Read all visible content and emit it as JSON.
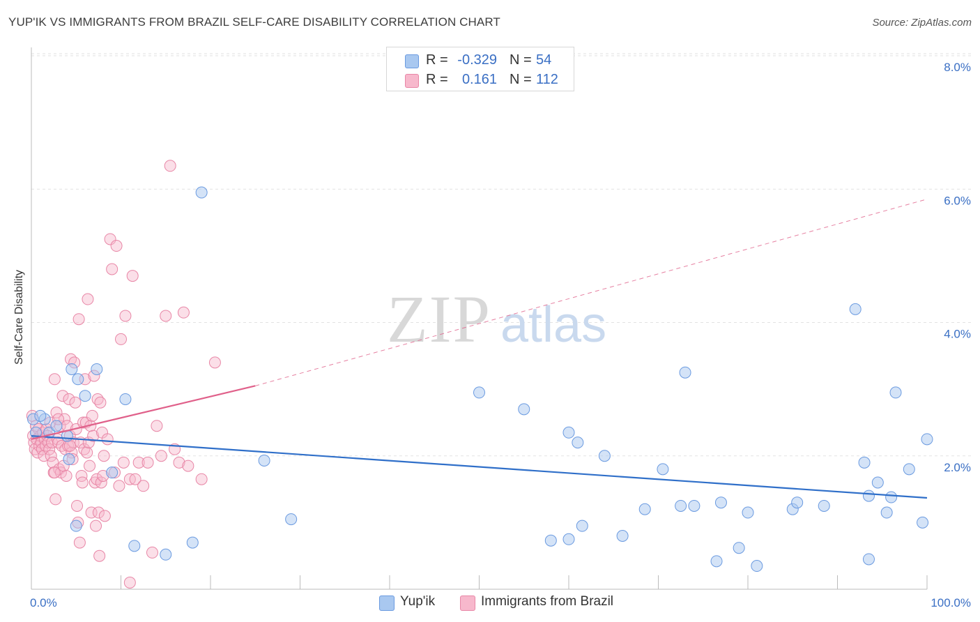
{
  "title": "YUP'IK VS IMMIGRANTS FROM BRAZIL SELF-CARE DISABILITY CORRELATION CHART",
  "source": "Source: ZipAtlas.com",
  "watermark": {
    "zip": "ZIP",
    "atlas": "atlas"
  },
  "legend_top": [
    {
      "r_label": "R =",
      "r_value": "-0.329",
      "n_label": "N =",
      "n_value": "54"
    },
    {
      "r_label": "R =",
      "r_value": "0.161",
      "n_label": "N =",
      "n_value": "112"
    }
  ],
  "legend_bottom": [
    "Yup'ik",
    "Immigrants from Brazil"
  ],
  "colors": {
    "yupik_fill": "#a9c8f0",
    "yupik_stroke": "#6a9ae0",
    "yupik_line": "#2f6fc9",
    "brazil_fill": "#f7b8cc",
    "brazil_stroke": "#e886a6",
    "brazil_line": "#e0608a",
    "tick_label": "#3a6fc4",
    "grid": "#e2e2e2"
  },
  "chart_data": {
    "type": "scatter",
    "title": "YUP'IK VS IMMIGRANTS FROM BRAZIL SELF-CARE DISABILITY CORRELATION CHART",
    "xlabel": "",
    "ylabel": "Self-Care Disability",
    "xlim": [
      0,
      100
    ],
    "ylim": [
      0,
      8.0
    ],
    "x_tick_labels": [
      "0.0%",
      "100.0%"
    ],
    "y_ticks": [
      2.0,
      4.0,
      6.0,
      8.0
    ],
    "y_tick_labels": [
      "2.0%",
      "4.0%",
      "6.0%",
      "8.0%"
    ],
    "grid": true,
    "legend_placement": "top-center",
    "series": [
      {
        "name": "Yup'ik",
        "r": -0.329,
        "n": 54,
        "trend": {
          "x": [
            0,
            100
          ],
          "y": [
            2.3,
            1.37
          ],
          "style": "solid"
        },
        "points": [
          [
            0.2,
            2.55
          ],
          [
            0.5,
            2.35
          ],
          [
            1.5,
            2.55
          ],
          [
            2.0,
            2.35
          ],
          [
            2.8,
            2.45
          ],
          [
            4.0,
            2.3
          ],
          [
            4.2,
            1.95
          ],
          [
            4.5,
            3.3
          ],
          [
            5.0,
            0.95
          ],
          [
            5.2,
            3.15
          ],
          [
            6.0,
            2.9
          ],
          [
            7.3,
            3.3
          ],
          [
            9.0,
            1.75
          ],
          [
            10.5,
            2.85
          ],
          [
            11.5,
            0.65
          ],
          [
            15.0,
            0.52
          ],
          [
            18.0,
            0.7
          ],
          [
            19.0,
            5.95
          ],
          [
            26.0,
            1.93
          ],
          [
            29.0,
            1.05
          ],
          [
            50.0,
            2.95
          ],
          [
            55.0,
            2.7
          ],
          [
            58.0,
            0.73
          ],
          [
            60.0,
            0.75
          ],
          [
            60.0,
            2.35
          ],
          [
            61.0,
            2.2
          ],
          [
            61.5,
            0.95
          ],
          [
            64.0,
            2.0
          ],
          [
            66.0,
            0.8
          ],
          [
            68.5,
            1.2
          ],
          [
            70.5,
            1.8
          ],
          [
            72.5,
            1.25
          ],
          [
            73.0,
            3.25
          ],
          [
            74.0,
            1.25
          ],
          [
            76.5,
            0.42
          ],
          [
            77.0,
            1.3
          ],
          [
            79.0,
            0.62
          ],
          [
            80.0,
            1.15
          ],
          [
            81.0,
            0.35
          ],
          [
            85.0,
            1.2
          ],
          [
            85.5,
            1.3
          ],
          [
            88.5,
            1.25
          ],
          [
            92.0,
            4.2
          ],
          [
            93.0,
            1.9
          ],
          [
            93.5,
            1.4
          ],
          [
            93.5,
            0.45
          ],
          [
            94.5,
            1.6
          ],
          [
            95.5,
            1.15
          ],
          [
            96.0,
            1.38
          ],
          [
            96.5,
            2.95
          ],
          [
            98.0,
            1.8
          ],
          [
            99.5,
            1.0
          ],
          [
            100.0,
            2.25
          ],
          [
            1.0,
            2.6
          ]
        ]
      },
      {
        "name": "Immigrants from Brazil",
        "r": 0.161,
        "n": 112,
        "trend": {
          "x": [
            0,
            25,
            100
          ],
          "y": [
            2.25,
            3.05,
            5.85
          ],
          "style": "solid to 25, dashed after"
        },
        "points": [
          [
            0.1,
            2.6
          ],
          [
            0.2,
            2.3
          ],
          [
            0.3,
            2.2
          ],
          [
            0.4,
            2.1
          ],
          [
            0.5,
            2.45
          ],
          [
            0.6,
            2.25
          ],
          [
            0.7,
            2.05
          ],
          [
            0.8,
            2.4
          ],
          [
            0.9,
            2.15
          ],
          [
            1.0,
            2.3
          ],
          [
            1.1,
            2.2
          ],
          [
            1.2,
            2.1
          ],
          [
            1.3,
            2.35
          ],
          [
            1.4,
            2.0
          ],
          [
            1.5,
            2.25
          ],
          [
            1.6,
            2.15
          ],
          [
            1.7,
            2.4
          ],
          [
            1.8,
            2.3
          ],
          [
            1.9,
            2.2
          ],
          [
            2.0,
            2.1
          ],
          [
            2.1,
            2.5
          ],
          [
            2.2,
            2.0
          ],
          [
            2.3,
            2.2
          ],
          [
            2.4,
            1.9
          ],
          [
            2.5,
            1.75
          ],
          [
            2.6,
            3.15
          ],
          [
            2.7,
            1.35
          ],
          [
            2.8,
            2.65
          ],
          [
            2.9,
            2.25
          ],
          [
            3.0,
            2.2
          ],
          [
            3.1,
            1.8
          ],
          [
            3.2,
            2.45
          ],
          [
            3.3,
            1.75
          ],
          [
            3.4,
            2.15
          ],
          [
            3.5,
            2.9
          ],
          [
            3.6,
            1.85
          ],
          [
            3.7,
            2.55
          ],
          [
            3.8,
            2.1
          ],
          [
            3.9,
            1.7
          ],
          [
            4.0,
            2.45
          ],
          [
            4.1,
            2.15
          ],
          [
            4.2,
            2.85
          ],
          [
            4.3,
            2.3
          ],
          [
            4.4,
            3.45
          ],
          [
            4.5,
            2.05
          ],
          [
            4.6,
            1.95
          ],
          [
            4.7,
            2.2
          ],
          [
            4.8,
            3.4
          ],
          [
            4.9,
            2.8
          ],
          [
            5.0,
            2.4
          ],
          [
            5.1,
            1.25
          ],
          [
            5.2,
            1.0
          ],
          [
            5.3,
            4.05
          ],
          [
            5.4,
            0.7
          ],
          [
            5.5,
            2.2
          ],
          [
            5.6,
            1.7
          ],
          [
            5.7,
            1.6
          ],
          [
            5.8,
            2.5
          ],
          [
            5.9,
            2.1
          ],
          [
            6.0,
            3.15
          ],
          [
            6.1,
            2.5
          ],
          [
            6.2,
            2.05
          ],
          [
            6.3,
            4.35
          ],
          [
            6.4,
            2.2
          ],
          [
            6.5,
            1.85
          ],
          [
            6.6,
            2.45
          ],
          [
            6.7,
            1.15
          ],
          [
            6.8,
            2.6
          ],
          [
            6.9,
            2.3
          ],
          [
            7.0,
            3.2
          ],
          [
            7.1,
            1.6
          ],
          [
            7.2,
            0.95
          ],
          [
            7.3,
            1.65
          ],
          [
            7.4,
            2.85
          ],
          [
            7.5,
            1.15
          ],
          [
            7.6,
            0.5
          ],
          [
            7.7,
            2.8
          ],
          [
            7.8,
            1.6
          ],
          [
            7.9,
            2.35
          ],
          [
            8.0,
            1.7
          ],
          [
            8.1,
            2.0
          ],
          [
            8.2,
            1.1
          ],
          [
            8.5,
            2.25
          ],
          [
            8.8,
            5.25
          ],
          [
            9.0,
            4.8
          ],
          [
            9.3,
            1.75
          ],
          [
            9.5,
            5.15
          ],
          [
            9.8,
            1.55
          ],
          [
            10.0,
            3.75
          ],
          [
            10.3,
            1.9
          ],
          [
            10.5,
            4.1
          ],
          [
            11.0,
            1.65
          ],
          [
            11.3,
            4.7
          ],
          [
            11.6,
            1.65
          ],
          [
            12.0,
            1.9
          ],
          [
            12.5,
            1.55
          ],
          [
            13.0,
            1.9
          ],
          [
            13.5,
            0.55
          ],
          [
            14.0,
            2.45
          ],
          [
            14.5,
            2.0
          ],
          [
            15.0,
            4.1
          ],
          [
            15.5,
            6.35
          ],
          [
            16.0,
            2.1
          ],
          [
            16.5,
            1.9
          ],
          [
            17.0,
            4.15
          ],
          [
            17.5,
            1.85
          ],
          [
            19.0,
            1.65
          ],
          [
            20.5,
            3.4
          ],
          [
            11.0,
            0.1
          ],
          [
            2.6,
            1.75
          ],
          [
            3.0,
            2.55
          ],
          [
            4.3,
            2.15
          ]
        ]
      }
    ]
  }
}
